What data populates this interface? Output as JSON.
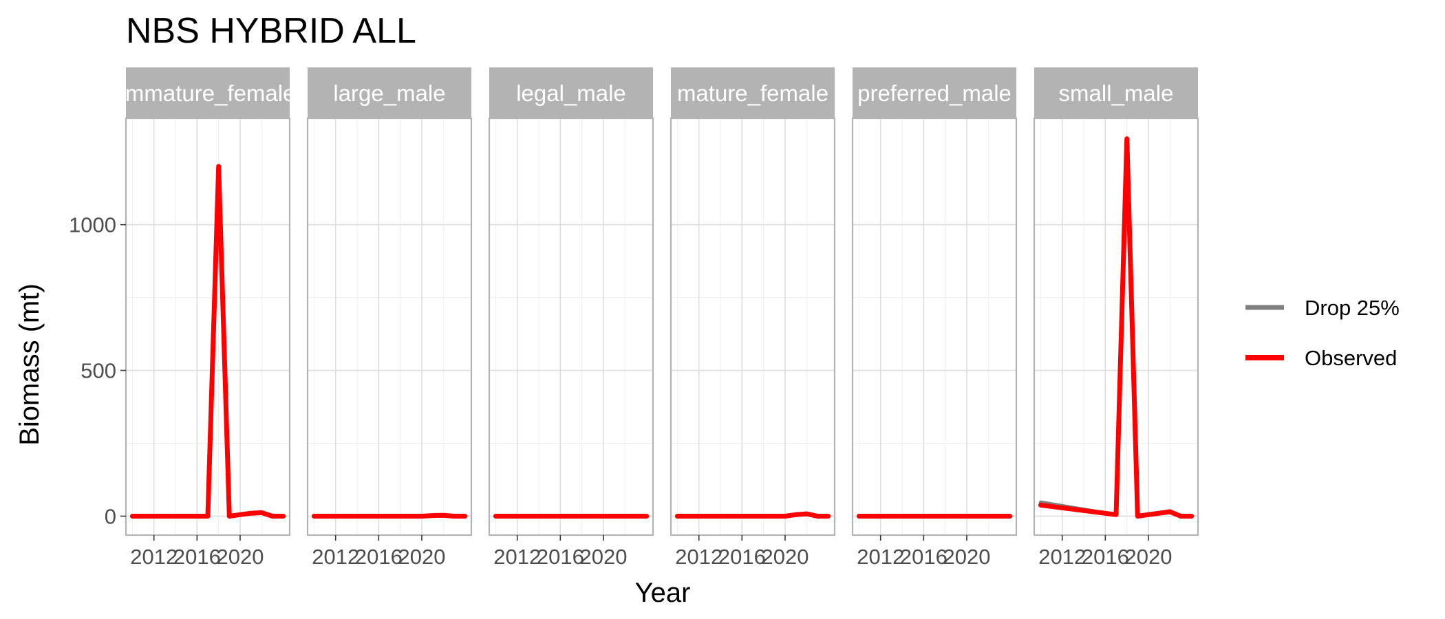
{
  "chart_data": {
    "type": "line",
    "title": "NBS HYBRID ALL",
    "xlabel": "Year",
    "ylabel": "Biomass (mt)",
    "xlim": [
      2009.4,
      2024.6
    ],
    "ylim": [
      -65,
      1365
    ],
    "x_ticks": [
      2012,
      2016,
      2020
    ],
    "y_ticks": [
      0,
      500,
      1000
    ],
    "grid": true,
    "legend_position": "right",
    "legend": [
      {
        "label": "Drop 25%",
        "color": "#808080"
      },
      {
        "label": "Observed",
        "color": "#ff0000"
      }
    ],
    "panels": [
      {
        "label": "immature_female",
        "series": [
          {
            "name": "Drop 25%",
            "x": [
              2010,
              2017,
              2018,
              2019,
              2020,
              2021,
              2022,
              2023,
              2024
            ],
            "y": [
              0,
              0,
              1190,
              0,
              5,
              8,
              10,
              0,
              0
            ]
          },
          {
            "name": "Observed",
            "x": [
              2010,
              2017,
              2018,
              2019,
              2020,
              2021,
              2022,
              2023,
              2024
            ],
            "y": [
              0,
              0,
              1200,
              0,
              5,
              10,
              12,
              0,
              0
            ]
          }
        ]
      },
      {
        "label": "large_male",
        "series": [
          {
            "name": "Drop 25%",
            "x": [
              2010,
              2017,
              2018,
              2019,
              2020,
              2021,
              2022,
              2023,
              2024
            ],
            "y": [
              0,
              0,
              0,
              0,
              0,
              0,
              2,
              0,
              0
            ]
          },
          {
            "name": "Observed",
            "x": [
              2010,
              2017,
              2018,
              2019,
              2020,
              2021,
              2022,
              2023,
              2024
            ],
            "y": [
              0,
              0,
              0,
              0,
              0,
              2,
              3,
              0,
              0
            ]
          }
        ]
      },
      {
        "label": "legal_male",
        "series": [
          {
            "name": "Drop 25%",
            "x": [
              2010,
              2017,
              2018,
              2019,
              2020,
              2021,
              2022,
              2023,
              2024
            ],
            "y": [
              0,
              0,
              0,
              0,
              0,
              0,
              0,
              0,
              0
            ]
          },
          {
            "name": "Observed",
            "x": [
              2010,
              2017,
              2018,
              2019,
              2020,
              2021,
              2022,
              2023,
              2024
            ],
            "y": [
              0,
              0,
              0,
              0,
              0,
              0,
              0,
              0,
              0
            ]
          }
        ]
      },
      {
        "label": "mature_female",
        "series": [
          {
            "name": "Drop 25%",
            "x": [
              2010,
              2017,
              2018,
              2019,
              2020,
              2021,
              2022,
              2023,
              2024
            ],
            "y": [
              0,
              0,
              0,
              0,
              0,
              3,
              5,
              0,
              0
            ]
          },
          {
            "name": "Observed",
            "x": [
              2010,
              2017,
              2018,
              2019,
              2020,
              2021,
              2022,
              2023,
              2024
            ],
            "y": [
              0,
              0,
              0,
              0,
              0,
              5,
              8,
              0,
              0
            ]
          }
        ]
      },
      {
        "label": "preferred_male",
        "series": [
          {
            "name": "Drop 25%",
            "x": [
              2010,
              2017,
              2018,
              2019,
              2020,
              2021,
              2022,
              2023,
              2024
            ],
            "y": [
              0,
              0,
              0,
              0,
              0,
              0,
              0,
              0,
              0
            ]
          },
          {
            "name": "Observed",
            "x": [
              2010,
              2017,
              2018,
              2019,
              2020,
              2021,
              2022,
              2023,
              2024
            ],
            "y": [
              0,
              0,
              0,
              0,
              0,
              0,
              0,
              0,
              0
            ]
          }
        ]
      },
      {
        "label": "small_male",
        "series": [
          {
            "name": "Drop 25%",
            "x": [
              2010,
              2017,
              2018,
              2019,
              2020,
              2021,
              2022,
              2023,
              2024
            ],
            "y": [
              48,
              5,
              1290,
              0,
              8,
              12,
              18,
              0,
              0
            ]
          },
          {
            "name": "Observed",
            "x": [
              2010,
              2017,
              2018,
              2019,
              2020,
              2021,
              2022,
              2023,
              2024
            ],
            "y": [
              38,
              5,
              1295,
              0,
              5,
              10,
              15,
              0,
              0
            ]
          }
        ]
      }
    ]
  }
}
